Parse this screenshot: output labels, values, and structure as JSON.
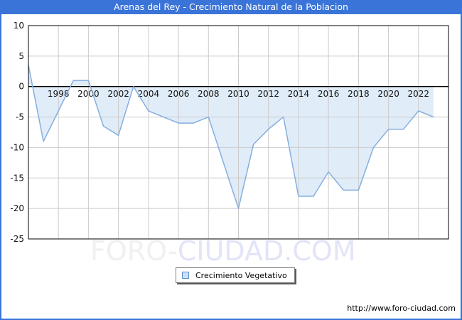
{
  "header": {
    "title": "Arenas del Rey - Crecimiento Natural de la Poblacion",
    "background": "#3a74d8",
    "text_color": "#ffffff"
  },
  "watermark": {
    "part1": "FORO-",
    "part2": "CIUDAD.COM"
  },
  "legend": {
    "label": "Crecimiento Vegetativo",
    "marker_fill": "#c9e0f6",
    "marker_border": "#5e8fc9"
  },
  "footer": {
    "url": "http://www.foro-ciudad.com"
  },
  "chart_data": {
    "type": "area",
    "title": "Arenas del Rey - Crecimiento Natural de la Poblacion",
    "legend_entries": [
      "Crecimiento Vegetativo"
    ],
    "legend_position": "bottom-center",
    "grid": true,
    "x": [
      1996,
      1997,
      1998,
      1999,
      2000,
      2001,
      2002,
      2003,
      2004,
      2005,
      2006,
      2007,
      2008,
      2009,
      2010,
      2011,
      2012,
      2013,
      2014,
      2015,
      2016,
      2017,
      2018,
      2019,
      2020,
      2021,
      2022,
      2023
    ],
    "values": [
      3.5,
      -9,
      -4,
      1,
      1,
      -6.5,
      -8,
      0,
      -4,
      -5,
      -6,
      -6,
      -5,
      -12.5,
      -20,
      -9.5,
      -7,
      -5,
      -18,
      -18,
      -14,
      -17,
      -17,
      -10,
      -7,
      -7,
      -4,
      -5
    ],
    "xlim": [
      1996,
      2024
    ],
    "ylim": [
      -25,
      10
    ],
    "yticks": [
      10,
      5,
      0,
      -5,
      -10,
      -15,
      -20,
      -25
    ],
    "xticks": [
      1998,
      2000,
      2002,
      2004,
      2006,
      2008,
      2010,
      2012,
      2014,
      2016,
      2018,
      2020,
      2022
    ],
    "xlabel": "",
    "ylabel": "",
    "colors": {
      "fill": "#e0ecf8",
      "line": "#85afe0",
      "gridline": "#cccccc",
      "axis": "#000000",
      "tick_text": "#111111",
      "accent": "#3a74d8"
    }
  }
}
